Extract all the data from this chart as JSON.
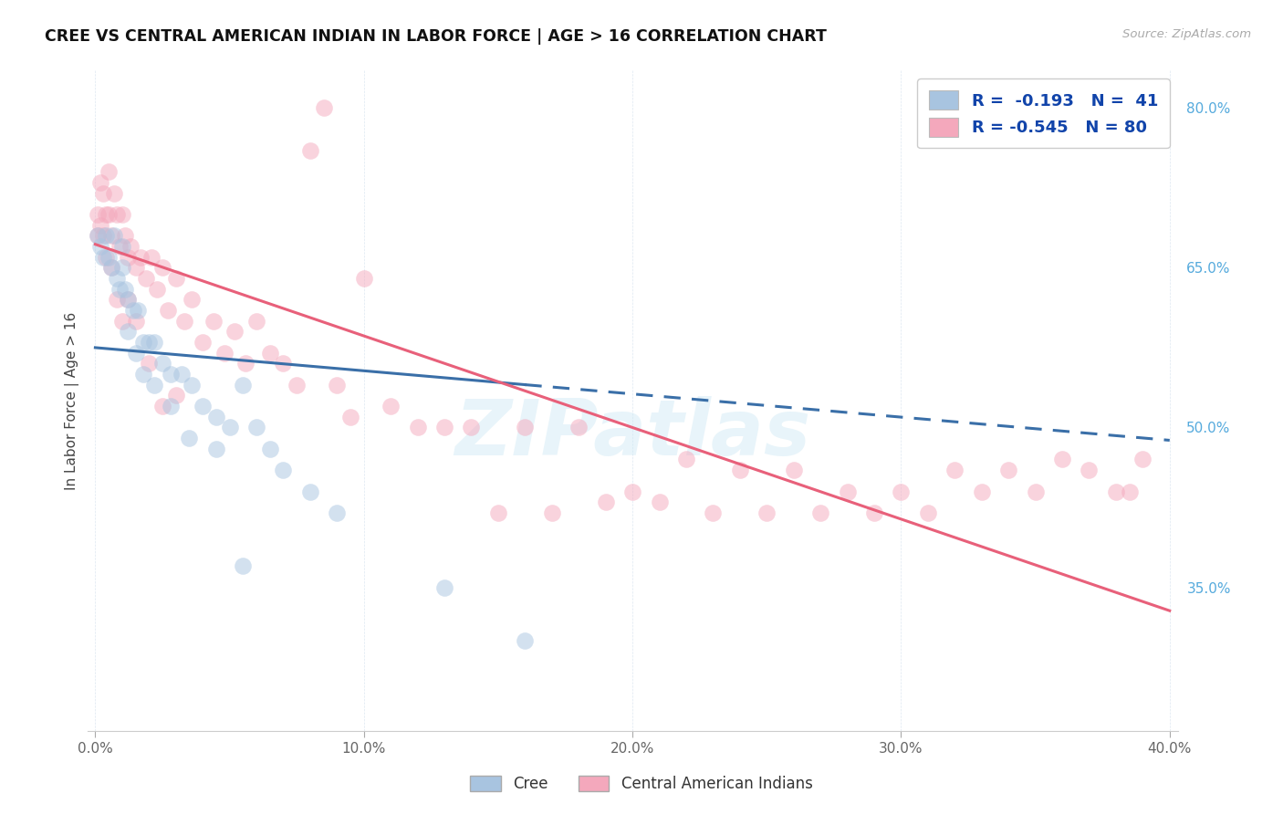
{
  "title": "CREE VS CENTRAL AMERICAN INDIAN IN LABOR FORCE | AGE > 16 CORRELATION CHART",
  "source": "Source: ZipAtlas.com",
  "ylabel": "In Labor Force | Age > 16",
  "x_tick_labels": [
    "0.0%",
    "10.0%",
    "20.0%",
    "30.0%",
    "40.0%"
  ],
  "x_tick_values": [
    0.0,
    0.1,
    0.2,
    0.3,
    0.4
  ],
  "y_tick_labels_right": [
    "80.0%",
    "65.0%",
    "50.0%",
    "35.0%"
  ],
  "y_tick_values_right": [
    0.8,
    0.65,
    0.5,
    0.35
  ],
  "xlim": [
    -0.003,
    0.403
  ],
  "ylim": [
    0.215,
    0.835
  ],
  "cree_R": -0.193,
  "cree_N": 41,
  "ca_R": -0.545,
  "ca_N": 80,
  "cree_color": "#a8c4e0",
  "ca_color": "#f4a8bc",
  "cree_line_color": "#3a6fa8",
  "ca_line_color": "#e8607a",
  "watermark": "ZIPatlas",
  "background_color": "#ffffff",
  "grid_color": "#c8d8e8",
  "cree_line_x0": 0.0,
  "cree_line_y0": 0.575,
  "cree_line_x1": 0.4,
  "cree_line_y1": 0.488,
  "cree_line_solid_end": 0.16,
  "ca_line_x0": 0.0,
  "ca_line_y0": 0.672,
  "ca_line_x1": 0.4,
  "ca_line_y1": 0.328,
  "cree_x": [
    0.001,
    0.002,
    0.003,
    0.004,
    0.005,
    0.006,
    0.007,
    0.008,
    0.009,
    0.01,
    0.011,
    0.012,
    0.014,
    0.016,
    0.018,
    0.02,
    0.022,
    0.025,
    0.028,
    0.032,
    0.036,
    0.04,
    0.045,
    0.05,
    0.055,
    0.06,
    0.065,
    0.07,
    0.08,
    0.09,
    0.01,
    0.012,
    0.015,
    0.018,
    0.022,
    0.028,
    0.035,
    0.045,
    0.055,
    0.13,
    0.16
  ],
  "cree_y": [
    0.68,
    0.67,
    0.66,
    0.68,
    0.66,
    0.65,
    0.68,
    0.64,
    0.63,
    0.67,
    0.63,
    0.62,
    0.61,
    0.61,
    0.58,
    0.58,
    0.58,
    0.56,
    0.55,
    0.55,
    0.54,
    0.52,
    0.51,
    0.5,
    0.54,
    0.5,
    0.48,
    0.46,
    0.44,
    0.42,
    0.65,
    0.59,
    0.57,
    0.55,
    0.54,
    0.52,
    0.49,
    0.48,
    0.37,
    0.35,
    0.3
  ],
  "ca_x": [
    0.001,
    0.001,
    0.002,
    0.002,
    0.003,
    0.003,
    0.004,
    0.004,
    0.005,
    0.005,
    0.006,
    0.007,
    0.008,
    0.009,
    0.01,
    0.011,
    0.012,
    0.013,
    0.015,
    0.017,
    0.019,
    0.021,
    0.023,
    0.025,
    0.027,
    0.03,
    0.033,
    0.036,
    0.04,
    0.044,
    0.048,
    0.052,
    0.056,
    0.06,
    0.065,
    0.07,
    0.075,
    0.08,
    0.085,
    0.09,
    0.095,
    0.1,
    0.11,
    0.12,
    0.13,
    0.14,
    0.15,
    0.16,
    0.17,
    0.18,
    0.19,
    0.2,
    0.21,
    0.22,
    0.23,
    0.24,
    0.25,
    0.26,
    0.27,
    0.28,
    0.29,
    0.3,
    0.31,
    0.32,
    0.33,
    0.34,
    0.35,
    0.36,
    0.37,
    0.38,
    0.385,
    0.39,
    0.006,
    0.008,
    0.01,
    0.012,
    0.015,
    0.02,
    0.025,
    0.03
  ],
  "ca_y": [
    0.7,
    0.68,
    0.73,
    0.69,
    0.72,
    0.68,
    0.7,
    0.66,
    0.74,
    0.7,
    0.68,
    0.72,
    0.7,
    0.67,
    0.7,
    0.68,
    0.66,
    0.67,
    0.65,
    0.66,
    0.64,
    0.66,
    0.63,
    0.65,
    0.61,
    0.64,
    0.6,
    0.62,
    0.58,
    0.6,
    0.57,
    0.59,
    0.56,
    0.6,
    0.57,
    0.56,
    0.54,
    0.76,
    0.8,
    0.54,
    0.51,
    0.64,
    0.52,
    0.5,
    0.5,
    0.5,
    0.42,
    0.5,
    0.42,
    0.5,
    0.43,
    0.44,
    0.43,
    0.47,
    0.42,
    0.46,
    0.42,
    0.46,
    0.42,
    0.44,
    0.42,
    0.44,
    0.42,
    0.46,
    0.44,
    0.46,
    0.44,
    0.47,
    0.46,
    0.44,
    0.44,
    0.47,
    0.65,
    0.62,
    0.6,
    0.62,
    0.6,
    0.56,
    0.52,
    0.53
  ]
}
